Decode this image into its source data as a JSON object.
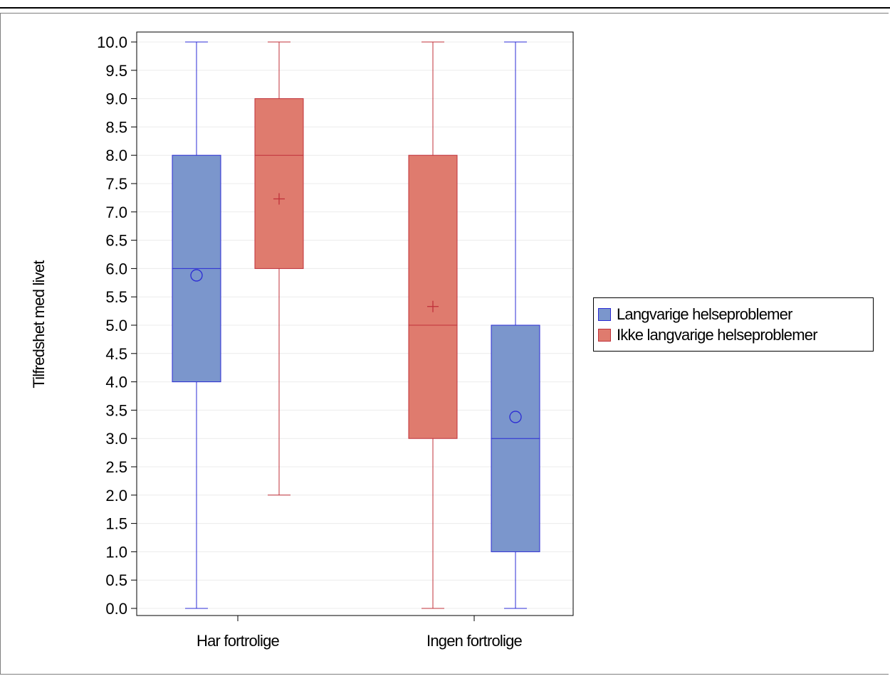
{
  "chart_data": {
    "type": "box",
    "title": "",
    "xlabel": "",
    "ylabel": "Tilfredshet med livet",
    "ylim": [
      0,
      10
    ],
    "y_ticks": [
      "0.0",
      "0.5",
      "1.0",
      "1.5",
      "2.0",
      "2.5",
      "3.0",
      "3.5",
      "4.0",
      "4.5",
      "5.0",
      "5.5",
      "6.0",
      "6.5",
      "7.0",
      "7.5",
      "8.0",
      "8.5",
      "9.0",
      "9.5",
      "10.0"
    ],
    "categories": [
      "Har fortrolige",
      "Ingen fortrolige"
    ],
    "grid": true,
    "legend_position": "right",
    "series": [
      {
        "name": "Langvarige helseproblemer",
        "fill": "#7b96cc",
        "stroke": "#2b2bd4",
        "mean_marker": "circle",
        "boxes": [
          {
            "category": "Har fortrolige",
            "min": 0,
            "q1": 4,
            "median": 6,
            "q3": 8,
            "max": 10,
            "mean": 5.88
          },
          {
            "category": "Ingen fortrolige",
            "min": 0,
            "q1": 1,
            "median": 3,
            "q3": 5,
            "max": 10,
            "mean": 3.38
          }
        ]
      },
      {
        "name": "Ikke langvarige helseproblemer",
        "fill": "#df7b6e",
        "stroke": "#c0303a",
        "mean_marker": "plus",
        "boxes": [
          {
            "category": "Har fortrolige",
            "min": 2,
            "q1": 6,
            "median": 8,
            "q3": 9,
            "max": 10,
            "mean": 7.23
          },
          {
            "category": "Ingen fortrolige",
            "min": 0,
            "q1": 3,
            "median": 5,
            "q3": 8,
            "max": 10,
            "mean": 5.33
          }
        ]
      }
    ]
  }
}
